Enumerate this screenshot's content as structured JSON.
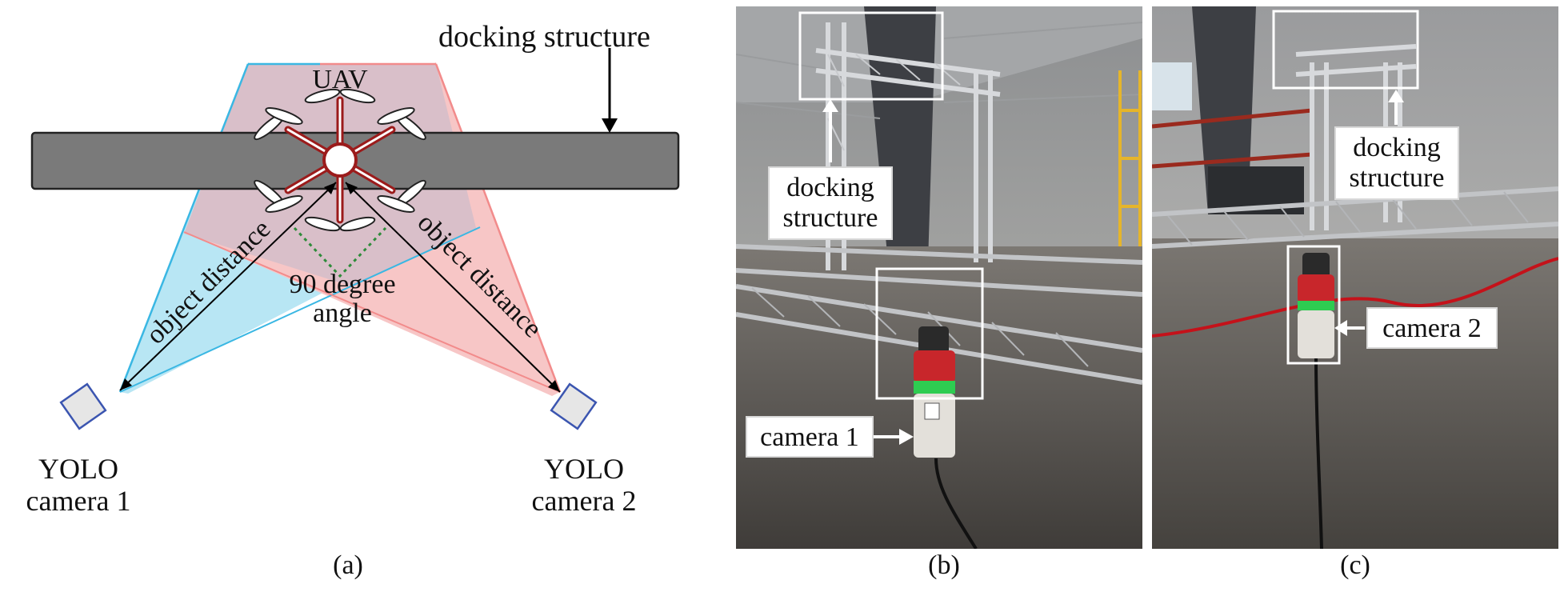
{
  "panel_a": {
    "caption": "(a)",
    "docking_label": "docking structure",
    "uav_label": "UAV",
    "object_distance_left": "object distance",
    "object_distance_right": "object distance",
    "angle_line1": "90 degree",
    "angle_line2": "angle",
    "camera1_line1": "YOLO",
    "camera1_line2": "camera 1",
    "camera2_line1": "YOLO",
    "camera2_line2": "camera 2",
    "colors": {
      "bar": "#7a7a7a",
      "left_fov": "#b8e6f4",
      "right_fov": "#f7c6c6",
      "overlap": "#d9bfc9",
      "uav_arms": "#9b1b1b",
      "camera_outline": "#3b55b0",
      "angle_dots": "#2e8b3a"
    }
  },
  "panel_b": {
    "caption": "(b)",
    "docking_label_line1": "docking",
    "docking_label_line2": "structure",
    "camera_label": "camera 1"
  },
  "panel_c": {
    "caption": "(c)",
    "docking_label_line1": "docking",
    "docking_label_line2": "structure",
    "camera_label": "camera 2"
  }
}
